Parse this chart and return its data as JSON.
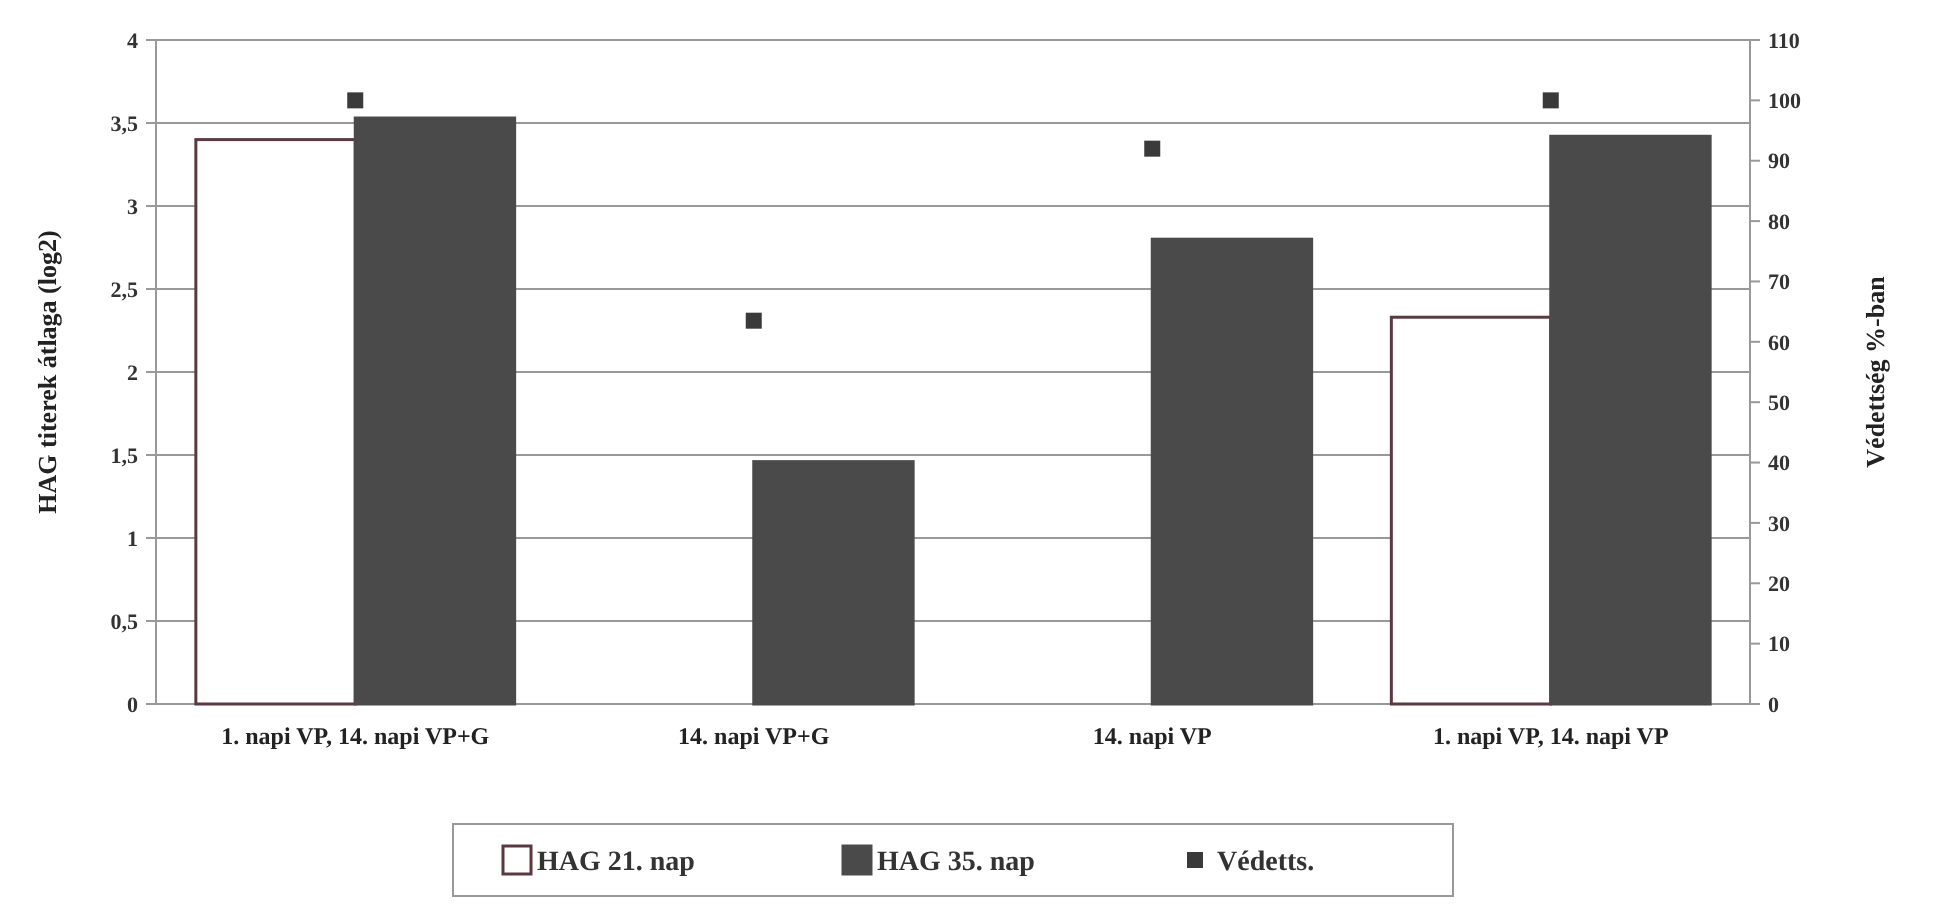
{
  "chart_data": {
    "type": "bar",
    "ylabel": "HAG titerek átlaga (log2)",
    "y2label": "Védettség %-ban",
    "categories": [
      "1. napi VP, 14. napi VP+G",
      "14. napi VP+G",
      "14. napi VP",
      "1. napi VP, 14. napi VP"
    ],
    "series": [
      {
        "name": "HAG 21. nap",
        "color": "#ffffff",
        "values": [
          3.4,
          null,
          null,
          2.33
        ]
      },
      {
        "name": "HAG 35. nap",
        "color": "#4a4a4a",
        "values": [
          3.53,
          1.46,
          2.8,
          3.42
        ]
      },
      {
        "name": "Védetts.",
        "type": "scatter",
        "axis": "y2",
        "color": "#3a3a3a",
        "values": [
          100,
          63.5,
          92,
          100
        ]
      }
    ],
    "ylim": [
      0,
      4
    ],
    "yticks": [
      0,
      {
        "value": 0.5,
        "label": "0,5"
      },
      1,
      {
        "value": 1.5,
        "label": "1,5"
      },
      2,
      {
        "value": 2.5,
        "label": "2,5"
      },
      3,
      {
        "value": 3.5,
        "label": "3,5"
      },
      4
    ],
    "y2lim": [
      0,
      110
    ],
    "y2ticks": [
      0,
      10,
      20,
      30,
      40,
      50,
      60,
      70,
      80,
      90,
      100,
      110
    ],
    "grid": "y",
    "legend": "bottom",
    "marker": "square"
  }
}
